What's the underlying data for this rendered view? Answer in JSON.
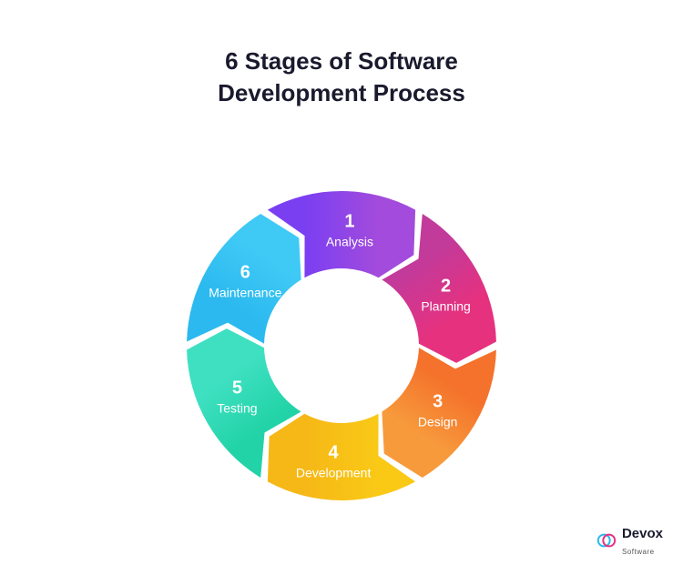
{
  "title_line1": "6 Stages of Software",
  "title_line2": "Development Process",
  "chart": {
    "type": "donut-cycle",
    "outer_radius": 170,
    "inner_radius": 85,
    "gap_deg": 3,
    "arrow_deg": 10,
    "background_color": "#ffffff",
    "text_color": "#ffffff",
    "number_fontsize": 20,
    "label_fontsize": 14,
    "segments": [
      {
        "number": "1",
        "label": "Analysis",
        "grad_from": "#7b3ff2",
        "grad_to": "#a24bdc"
      },
      {
        "number": "2",
        "label": "Planning",
        "grad_from": "#c23a9a",
        "grad_to": "#e6317f"
      },
      {
        "number": "3",
        "label": "Design",
        "grad_from": "#f4722b",
        "grad_to": "#f79a3c"
      },
      {
        "number": "4",
        "label": "Development",
        "grad_from": "#f9c916",
        "grad_to": "#f6b817"
      },
      {
        "number": "5",
        "label": "Testing",
        "grad_from": "#22d3a7",
        "grad_to": "#3fe0c2"
      },
      {
        "number": "6",
        "label": "Maintenance",
        "grad_from": "#2bb9ef",
        "grad_to": "#3fc9f5"
      }
    ]
  },
  "brand": {
    "name": "Devox",
    "sub": "Software",
    "icon_color1": "#2bb9ef",
    "icon_color2": "#e6317f"
  }
}
